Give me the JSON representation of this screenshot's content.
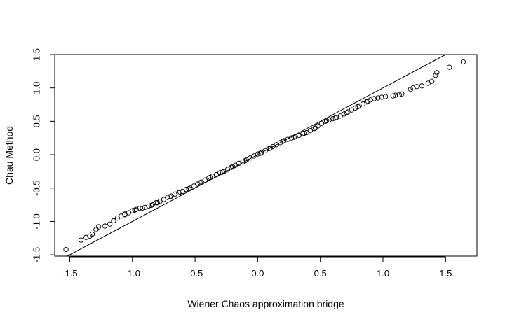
{
  "chart_data": {
    "type": "scatter",
    "title": "",
    "xlabel": "Wiener Chaos approximation bridge",
    "ylabel": "Chau Method",
    "xlim": [
      -1.62,
      1.75
    ],
    "ylim": [
      -1.52,
      1.5
    ],
    "xticks": [
      -1.5,
      -1.0,
      -0.5,
      0.0,
      0.5,
      1.0,
      1.5
    ],
    "xtick_labels": [
      "-1.5",
      "-1.0",
      "-0.5",
      "0.0",
      "0.5",
      "1.0",
      "1.5"
    ],
    "yticks": [
      -1.5,
      -1.0,
      -0.5,
      0.0,
      0.5,
      1.0,
      1.5
    ],
    "ytick_labels": [
      "-1.5",
      "-1.0",
      "-0.5",
      "0.0",
      "0.5",
      "1.0",
      "1.5"
    ],
    "grid": false,
    "marker": "open-circle",
    "reference_line": {
      "slope": 1,
      "intercept": 0
    },
    "points": [
      [
        -1.53,
        -1.42
      ],
      [
        -1.41,
        -1.28
      ],
      [
        -1.37,
        -1.24
      ],
      [
        -1.34,
        -1.22
      ],
      [
        -1.32,
        -1.19
      ],
      [
        -1.29,
        -1.12
      ],
      [
        -1.27,
        -1.08
      ],
      [
        -1.22,
        -1.07
      ],
      [
        -1.18,
        -1.04
      ],
      [
        -1.15,
        -0.99
      ],
      [
        -1.12,
        -0.95
      ],
      [
        -1.09,
        -0.92
      ],
      [
        -1.06,
        -0.89
      ],
      [
        -1.03,
        -0.87
      ],
      [
        -1.0,
        -0.84
      ],
      [
        -0.97,
        -0.82
      ],
      [
        -0.94,
        -0.8
      ],
      [
        -0.9,
        -0.79
      ],
      [
        -0.87,
        -0.77
      ],
      [
        -0.84,
        -0.75
      ],
      [
        -0.81,
        -0.72
      ],
      [
        -0.78,
        -0.7
      ],
      [
        -0.75,
        -0.67
      ],
      [
        -0.72,
        -0.64
      ],
      [
        -0.69,
        -0.62
      ],
      [
        -0.66,
        -0.59
      ],
      [
        -0.63,
        -0.57
      ],
      [
        -0.6,
        -0.55
      ],
      [
        -0.57,
        -0.52
      ],
      [
        -0.54,
        -0.5
      ],
      [
        -0.51,
        -0.47
      ],
      [
        -0.48,
        -0.44
      ],
      [
        -0.45,
        -0.41
      ],
      [
        -0.42,
        -0.38
      ],
      [
        -0.39,
        -0.35
      ],
      [
        -0.36,
        -0.32
      ],
      [
        -0.33,
        -0.3
      ],
      [
        -0.3,
        -0.27
      ],
      [
        -0.27,
        -0.25
      ],
      [
        -0.24,
        -0.22
      ],
      [
        -0.21,
        -0.19
      ],
      [
        -0.18,
        -0.16
      ],
      [
        -0.15,
        -0.13
      ],
      [
        -0.12,
        -0.11
      ],
      [
        -0.09,
        -0.08
      ],
      [
        -0.06,
        -0.05
      ],
      [
        -0.03,
        -0.02
      ],
      [
        0.0,
        0.01
      ],
      [
        0.03,
        0.03
      ],
      [
        0.06,
        0.06
      ],
      [
        0.09,
        0.09
      ],
      [
        0.12,
        0.12
      ],
      [
        0.15,
        0.15
      ],
      [
        0.18,
        0.18
      ],
      [
        0.21,
        0.21
      ],
      [
        0.24,
        0.23
      ],
      [
        0.27,
        0.25
      ],
      [
        0.3,
        0.27
      ],
      [
        0.33,
        0.29
      ],
      [
        0.36,
        0.31
      ],
      [
        0.39,
        0.33
      ],
      [
        0.42,
        0.36
      ],
      [
        0.45,
        0.39
      ],
      [
        0.48,
        0.43
      ],
      [
        0.51,
        0.47
      ],
      [
        0.54,
        0.5
      ],
      [
        0.57,
        0.52
      ],
      [
        0.6,
        0.54
      ],
      [
        0.63,
        0.56
      ],
      [
        0.66,
        0.58
      ],
      [
        0.69,
        0.61
      ],
      [
        0.72,
        0.64
      ],
      [
        0.75,
        0.67
      ],
      [
        0.78,
        0.7
      ],
      [
        0.81,
        0.73
      ],
      [
        0.84,
        0.76
      ],
      [
        0.87,
        0.79
      ],
      [
        0.9,
        0.82
      ],
      [
        0.93,
        0.84
      ],
      [
        0.96,
        0.85
      ],
      [
        0.99,
        0.86
      ],
      [
        1.02,
        0.87
      ],
      [
        1.1,
        0.89
      ],
      [
        1.13,
        0.9
      ],
      [
        1.15,
        0.91
      ],
      [
        1.22,
        0.98
      ],
      [
        1.24,
        1.0
      ],
      [
        1.27,
        1.02
      ],
      [
        1.31,
        1.03
      ],
      [
        1.36,
        1.07
      ],
      [
        1.39,
        1.1
      ],
      [
        1.42,
        1.19
      ],
      [
        1.43,
        1.23
      ],
      [
        1.53,
        1.31
      ],
      [
        1.64,
        1.39
      ],
      [
        -1.06,
        -0.9
      ],
      [
        -0.98,
        -0.83
      ],
      [
        -0.92,
        -0.8
      ],
      [
        -0.85,
        -0.76
      ],
      [
        -0.8,
        -0.72
      ],
      [
        -0.7,
        -0.63
      ],
      [
        -0.62,
        -0.56
      ],
      [
        -0.55,
        -0.51
      ],
      [
        -0.46,
        -0.42
      ],
      [
        -0.38,
        -0.34
      ],
      [
        -0.28,
        -0.26
      ],
      [
        -0.2,
        -0.18
      ],
      [
        -0.1,
        -0.09
      ],
      [
        0.02,
        0.02
      ],
      [
        0.1,
        0.1
      ],
      [
        0.2,
        0.2
      ],
      [
        0.29,
        0.26
      ],
      [
        0.37,
        0.32
      ],
      [
        0.46,
        0.4
      ],
      [
        0.55,
        0.51
      ],
      [
        0.62,
        0.55
      ],
      [
        0.71,
        0.63
      ],
      [
        0.8,
        0.72
      ],
      [
        0.88,
        0.8
      ],
      [
        1.08,
        0.88
      ]
    ]
  }
}
